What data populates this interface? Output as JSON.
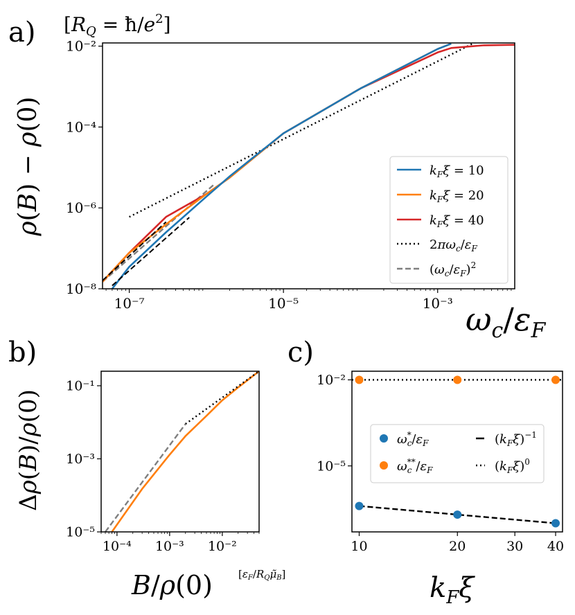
{
  "colors": {
    "blue": "#1f77b4",
    "orange": "#ff7f0e",
    "red": "#d62728",
    "black": "#000000",
    "gray": "#7f7f7f"
  },
  "chart_data": [
    {
      "id": "a",
      "panel_label": "a)",
      "type": "line",
      "unit_note": "[R_Q = ħ/e²]",
      "xlabel": "ω_c/ε_F",
      "ylabel": "ρ(B) − ρ(0)",
      "xscale": "log",
      "yscale": "log",
      "xlim": [
        4.5e-08,
        0.01
      ],
      "ylim": [
        1e-08,
        0.012
      ],
      "xticks": [
        {
          "value": 1e-07,
          "label": "10⁻⁷"
        },
        {
          "value": 1e-05,
          "label": "10⁻⁵"
        },
        {
          "value": 0.001,
          "label": "10⁻³"
        }
      ],
      "yticks": [
        {
          "value": 1e-08,
          "label": "10⁻⁸"
        },
        {
          "value": 1e-06,
          "label": "10⁻⁶"
        },
        {
          "value": 0.0001,
          "label": "10⁻⁴"
        },
        {
          "value": 0.01,
          "label": "10⁻²"
        }
      ],
      "legend_position": "lower-right",
      "series": [
        {
          "name": "k_F ξ = 10",
          "color": "blue",
          "style": "solid",
          "x": [
            6e-08,
            1e-07,
            3e-07,
            1e-06,
            2e-06,
            1e-05,
            0.0001,
            0.001,
            0.0015
          ],
          "y": [
            1e-08,
            3.5e-08,
            2.5e-07,
            1.9e-06,
            6e-06,
            7e-05,
            0.0009,
            0.0085,
            0.0115
          ]
        },
        {
          "name": "k_F ξ = 20",
          "color": "orange",
          "style": "solid",
          "x": [
            4.5e-08,
            1e-07,
            4e-07,
            1e-06,
            2e-06,
            1e-05,
            0.0001,
            0.001,
            0.0015
          ],
          "y": [
            1.5e-08,
            7.8e-08,
            6e-07,
            2.2e-06,
            5.6e-06,
            7e-05,
            0.0009,
            0.0085,
            0.0115
          ]
        },
        {
          "name": "k_F ξ = 40",
          "color": "red",
          "style": "solid",
          "x": [
            4.5e-08,
            1e-07,
            3e-07,
            1e-06,
            2e-06,
            1e-05,
            0.0001,
            0.001,
            0.0015,
            0.004,
            0.01
          ],
          "y": [
            1.5e-08,
            7.8e-08,
            6e-07,
            2.2e-06,
            5.6e-06,
            7e-05,
            0.0009,
            0.007,
            0.009,
            0.0105,
            0.0108
          ]
        },
        {
          "name": "2π ω_c/ε_F",
          "color": "black",
          "style": "dotted",
          "x": [
            1e-07,
            0.004
          ],
          "y": [
            6e-07,
            0.016
          ]
        },
        {
          "name": "(ω_c/ε_F)²",
          "color": "gray",
          "style": "dashed",
          "x": [
            4.5e-08,
            1.3e-06
          ],
          "y": [
            1.5e-08,
            4e-06
          ]
        }
      ],
      "extra_lines": [
        {
          "color": "black",
          "style": "dashed",
          "x": [
            6e-08,
            6e-07
          ],
          "y": [
            1.2e-08,
            5.8e-07
          ]
        },
        {
          "color": "black",
          "style": "dashed",
          "x": [
            4.5e-08,
            3e-07
          ],
          "y": [
            1.6e-08,
            4.5e-07
          ]
        }
      ]
    },
    {
      "id": "b",
      "panel_label": "b)",
      "type": "line",
      "xlabel": "B/ρ(0)",
      "xunit": "[ε_F/R_Q μ̃_B]",
      "ylabel": "Δρ(B)/ρ(0)",
      "xscale": "log",
      "yscale": "log",
      "xlim": [
        5e-05,
        0.05
      ],
      "ylim": [
        1e-05,
        0.25
      ],
      "xticks": [
        {
          "value": 0.0001,
          "label": "10⁻⁴"
        },
        {
          "value": 0.001,
          "label": "10⁻³"
        },
        {
          "value": 0.01,
          "label": "10⁻²"
        }
      ],
      "yticks": [
        {
          "value": 1e-05,
          "label": "10⁻⁵"
        },
        {
          "value": 0.001,
          "label": "10⁻³"
        },
        {
          "value": 0.1,
          "label": "10⁻¹"
        }
      ],
      "series": [
        {
          "name": "ρ curve",
          "color": "orange",
          "style": "solid",
          "x": [
            8e-05,
            0.0003,
            0.001,
            0.002,
            0.005,
            0.01,
            0.02,
            0.05
          ],
          "y": [
            1e-05,
            0.00015,
            0.0013,
            0.0042,
            0.015,
            0.04,
            0.09,
            0.25
          ]
        },
        {
          "name": "linear",
          "color": "black",
          "style": "dotted",
          "x": [
            0.002,
            0.05
          ],
          "y": [
            0.009,
            0.25
          ]
        },
        {
          "name": "quadratic",
          "color": "gray",
          "style": "dashed",
          "x": [
            6e-05,
            0.002
          ],
          "y": [
            1e-05,
            0.009
          ]
        }
      ]
    },
    {
      "id": "c",
      "panel_label": "c)",
      "type": "scatter",
      "xlabel": "k_F ξ",
      "xscale": "log",
      "yscale": "log",
      "xlim": [
        9.5,
        42
      ],
      "ylim": [
        5e-08,
        0.02
      ],
      "xticks": [
        {
          "value": 10,
          "label": "10"
        },
        {
          "value": 20,
          "label": "20"
        },
        {
          "value": 30,
          "label": "30"
        },
        {
          "value": 40,
          "label": "40"
        }
      ],
      "yticks": [
        {
          "value": 1e-05,
          "label": "10⁻⁵"
        },
        {
          "value": 0.01,
          "label": "10⁻²"
        }
      ],
      "legend_position": "center",
      "series": [
        {
          "name": "ω_c*/ε_F",
          "color": "blue",
          "marker": "circle",
          "x": [
            10,
            20,
            40
          ],
          "y": [
            4e-07,
            2e-07,
            1e-07
          ]
        },
        {
          "name": "ω_c**/ε_F",
          "color": "orange",
          "marker": "circle",
          "x": [
            10,
            20,
            40
          ],
          "y": [
            0.01,
            0.01,
            0.01
          ]
        }
      ],
      "fits": [
        {
          "name": "(k_F ξ)⁻¹",
          "color": "black",
          "style": "dashed",
          "x": [
            10,
            40
          ],
          "y": [
            4e-07,
            1e-07
          ]
        },
        {
          "name": "(k_F ξ)⁰",
          "color": "black",
          "style": "dotted",
          "x": [
            9.5,
            42
          ],
          "y": [
            0.01,
            0.01
          ]
        }
      ]
    }
  ]
}
